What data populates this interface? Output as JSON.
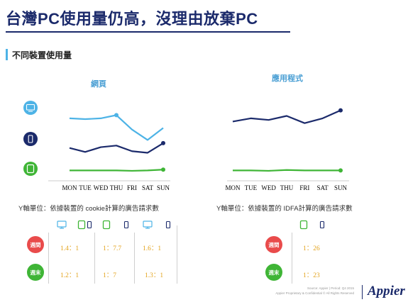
{
  "title": "台灣PC使用量仍高，沒理由放棄PC",
  "section_title": "不同裝置使用量",
  "colors": {
    "pc": "#4db3e6",
    "mobile": "#1b2a6b",
    "tablet": "#3fb536",
    "weekday": "#e94b4b",
    "weekend": "#3fb536",
    "ratio": "#e3a31d"
  },
  "icons": {
    "pc": "desktop-icon",
    "mobile": "smartphone-icon",
    "tablet": "tablet-icon"
  },
  "chart_data": [
    {
      "type": "line",
      "title": "網頁",
      "categories": [
        "MON",
        "TUE",
        "WED",
        "THU",
        "FRI",
        "SAT",
        "SUN"
      ],
      "series": [
        {
          "device": "pc",
          "values": [
            7.0,
            6.9,
            7.0,
            7.4,
            5.6,
            4.3,
            5.8
          ]
        },
        {
          "device": "mobile",
          "values": [
            3.3,
            2.8,
            3.4,
            3.6,
            2.9,
            2.7,
            3.9
          ]
        },
        {
          "device": "tablet",
          "values": [
            0.5,
            0.5,
            0.5,
            0.5,
            0.45,
            0.5,
            0.6
          ]
        }
      ]
    },
    {
      "type": "line",
      "title": "應用程式",
      "categories": [
        "MON",
        "TUE",
        "WED",
        "THU",
        "FRI",
        "SAT",
        "SUN"
      ],
      "series": [
        {
          "device": "mobile",
          "values": [
            6.6,
            7.0,
            6.8,
            7.3,
            6.4,
            7.0,
            8.0
          ]
        },
        {
          "device": "tablet",
          "values": [
            0.5,
            0.5,
            0.45,
            0.55,
            0.5,
            0.5,
            0.5
          ]
        }
      ]
    }
  ],
  "unit_notes": {
    "web": "Y軸單位：依據裝置的 cookie計算的廣告請求數",
    "app": "Y軸單位：依據裝置的 IDFA計算的廣告請求數"
  },
  "ratio_table": {
    "rows": [
      {
        "label": "週間",
        "web": [
          "1.4：1",
          "1：7.7",
          "1.6：1"
        ],
        "app": "1：26"
      },
      {
        "label": "週末",
        "web": [
          "1.2：1",
          "1：7",
          "1.3：1"
        ],
        "app": "1：23"
      }
    ]
  },
  "footer": {
    "source": "Source: Appier | Period: Q4 2015",
    "rights": "Appier Proprietary & Confidential © All Rights Reserved",
    "logo": "Appier"
  }
}
